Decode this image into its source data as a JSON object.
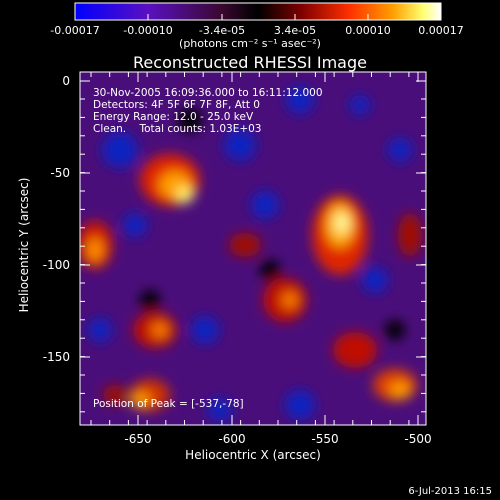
{
  "image": {
    "title": "Reconstructed RHESSI Image",
    "x_axis_label": "Heliocentric X (arcsec)",
    "y_axis_label": "Heliocentric Y (arcsec)",
    "x_ticks": [
      "-650",
      "-600",
      "-550",
      "-500"
    ],
    "y_ticks": [
      "0",
      "-50",
      "-100",
      "-150"
    ],
    "x_range": [
      -675,
      -490
    ],
    "y_range": [
      -187,
      5
    ],
    "colorbar": {
      "ticks": [
        "-0.00017",
        "-0.00010",
        "-3.4e-05",
        "3.4e-05",
        "0.00010",
        "0.00017"
      ],
      "units": "(photons cm⁻² s⁻¹ asec⁻²)",
      "colors": [
        "#0000ff",
        "#6a0eaf",
        "#4a0a4a",
        "#000000",
        "#6a0000",
        "#ff2000",
        "#ff9000",
        "#ffff60",
        "#ffffff"
      ]
    },
    "info_lines": [
      "30-Nov-2005 16:09:36.000 to 16:11:12.000",
      "Detectors: 4F 5F 6F 7F 8F, Att 0",
      "Energy Range: 12.0 - 25.0 keV",
      "Clean.    Total counts: 1.03E+03"
    ],
    "peak_text": "Position of Peak = [-537,-78]",
    "footer": "6-Jul-2013 16:15"
  }
}
